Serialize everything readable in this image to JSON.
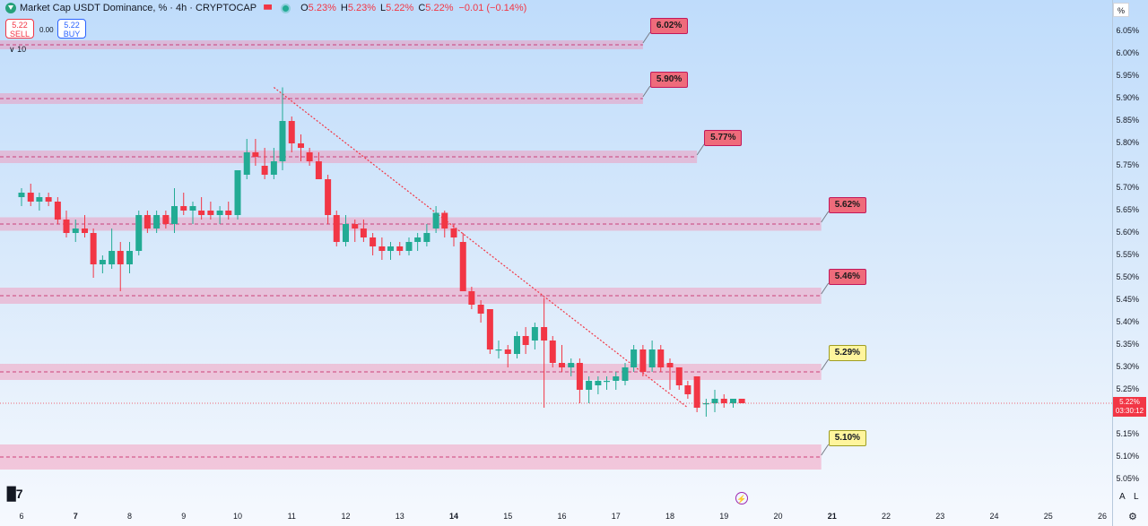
{
  "header": {
    "title": "Market Cap USDT Dominance, %  · 4h · CRYPTOCAP",
    "ohlc": [
      {
        "k": "O",
        "v": "5.23%"
      },
      {
        "k": "H",
        "v": "5.23%"
      },
      {
        "k": "L",
        "v": "5.22%"
      },
      {
        "k": "C",
        "v": "5.22%"
      }
    ],
    "change": "−0.01 (−0.14%)"
  },
  "trade": {
    "sell_price": "5.22",
    "sell_label": "SELL",
    "spread": "0.00",
    "buy_price": "5.22",
    "buy_label": "BUY",
    "indicators_label": "10"
  },
  "price_tag": {
    "price": "5.22%",
    "countdown": "03:30:12"
  },
  "axis_unit": "%",
  "corner": {
    "auto": "A",
    "log": "L"
  },
  "colors": {
    "up": "#22ab94",
    "down": "#f23645",
    "zone": "#f4a7c0",
    "trend": "#f23645"
  },
  "chart_data": {
    "type": "candlestick",
    "y_unit": "%",
    "ylim": [
      5.035,
      6.1
    ],
    "xlim": [
      6.0,
      26.2
    ],
    "y_ticks": [
      "6.05%",
      "6.00%",
      "5.95%",
      "5.90%",
      "5.85%",
      "5.80%",
      "5.75%",
      "5.70%",
      "5.65%",
      "5.60%",
      "5.55%",
      "5.50%",
      "5.45%",
      "5.40%",
      "5.35%",
      "5.30%",
      "5.25%",
      "5.20%",
      "5.15%",
      "5.10%",
      "5.05%"
    ],
    "x_ticks": [
      {
        "label": "6",
        "x": 6,
        "bold": false
      },
      {
        "label": "7",
        "x": 7,
        "bold": true
      },
      {
        "label": "8",
        "x": 8,
        "bold": false
      },
      {
        "label": "9",
        "x": 9,
        "bold": false
      },
      {
        "label": "10",
        "x": 10,
        "bold": false
      },
      {
        "label": "11",
        "x": 11,
        "bold": false
      },
      {
        "label": "12",
        "x": 12,
        "bold": false
      },
      {
        "label": "13",
        "x": 13,
        "bold": false
      },
      {
        "label": "14",
        "x": 14,
        "bold": true
      },
      {
        "label": "15",
        "x": 15,
        "bold": false
      },
      {
        "label": "16",
        "x": 16,
        "bold": false
      },
      {
        "label": "17",
        "x": 17,
        "bold": false
      },
      {
        "label": "18",
        "x": 18,
        "bold": false
      },
      {
        "label": "19",
        "x": 19,
        "bold": false
      },
      {
        "label": "20",
        "x": 20,
        "bold": false
      },
      {
        "label": "21",
        "x": 21,
        "bold": true
      },
      {
        "label": "22",
        "x": 22,
        "bold": false
      },
      {
        "label": "23",
        "x": 23,
        "bold": false
      },
      {
        "label": "24",
        "x": 24,
        "bold": false
      },
      {
        "label": "25",
        "x": 25,
        "bold": false
      },
      {
        "label": "26",
        "x": 26,
        "bold": false
      }
    ],
    "zones": [
      {
        "level": 6.02,
        "label": "6.02%",
        "half": 0.01,
        "x_end": 17.5,
        "style": "red"
      },
      {
        "level": 5.9,
        "label": "5.90%",
        "half": 0.012,
        "x_end": 17.5,
        "style": "red"
      },
      {
        "level": 5.77,
        "label": "5.77%",
        "half": 0.014,
        "x_end": 18.5,
        "style": "red"
      },
      {
        "level": 5.62,
        "label": "5.62%",
        "half": 0.015,
        "x_end": 20.8,
        "style": "red"
      },
      {
        "level": 5.46,
        "label": "5.46%",
        "half": 0.018,
        "x_end": 20.8,
        "style": "red"
      },
      {
        "level": 5.29,
        "label": "5.29%",
        "half": 0.018,
        "x_end": 20.8,
        "style": "yellow"
      },
      {
        "level": 5.1,
        "label": "5.10%",
        "half": 0.028,
        "x_end": 20.8,
        "style": "yellow"
      }
    ],
    "trendline": {
      "from": [
        10.67,
        5.925
      ],
      "to": [
        18.33,
        5.21
      ]
    },
    "last_price": 5.22,
    "candles": [
      {
        "x": 6.0,
        "o": 5.68,
        "h": 5.7,
        "l": 5.66,
        "c": 5.69
      },
      {
        "x": 6.17,
        "o": 5.69,
        "h": 5.71,
        "l": 5.66,
        "c": 5.67
      },
      {
        "x": 6.33,
        "o": 5.67,
        "h": 5.69,
        "l": 5.65,
        "c": 5.68
      },
      {
        "x": 6.5,
        "o": 5.68,
        "h": 5.69,
        "l": 5.66,
        "c": 5.67
      },
      {
        "x": 6.67,
        "o": 5.67,
        "h": 5.68,
        "l": 5.62,
        "c": 5.63
      },
      {
        "x": 6.83,
        "o": 5.63,
        "h": 5.65,
        "l": 5.59,
        "c": 5.6
      },
      {
        "x": 7.0,
        "o": 5.6,
        "h": 5.63,
        "l": 5.58,
        "c": 5.61
      },
      {
        "x": 7.17,
        "o": 5.61,
        "h": 5.64,
        "l": 5.59,
        "c": 5.6
      },
      {
        "x": 7.33,
        "o": 5.6,
        "h": 5.61,
        "l": 5.5,
        "c": 5.53
      },
      {
        "x": 7.5,
        "o": 5.53,
        "h": 5.55,
        "l": 5.51,
        "c": 5.54
      },
      {
        "x": 7.67,
        "o": 5.53,
        "h": 5.61,
        "l": 5.52,
        "c": 5.56
      },
      {
        "x": 7.83,
        "o": 5.56,
        "h": 5.58,
        "l": 5.47,
        "c": 5.53
      },
      {
        "x": 8.0,
        "o": 5.53,
        "h": 5.58,
        "l": 5.51,
        "c": 5.56
      },
      {
        "x": 8.17,
        "o": 5.56,
        "h": 5.65,
        "l": 5.55,
        "c": 5.64
      },
      {
        "x": 8.33,
        "o": 5.64,
        "h": 5.65,
        "l": 5.6,
        "c": 5.61
      },
      {
        "x": 8.5,
        "o": 5.61,
        "h": 5.65,
        "l": 5.6,
        "c": 5.64
      },
      {
        "x": 8.67,
        "o": 5.64,
        "h": 5.65,
        "l": 5.61,
        "c": 5.62
      },
      {
        "x": 8.83,
        "o": 5.62,
        "h": 5.7,
        "l": 5.6,
        "c": 5.66
      },
      {
        "x": 9.0,
        "o": 5.66,
        "h": 5.69,
        "l": 5.64,
        "c": 5.65
      },
      {
        "x": 9.17,
        "o": 5.65,
        "h": 5.67,
        "l": 5.62,
        "c": 5.66
      },
      {
        "x": 9.33,
        "o": 5.65,
        "h": 5.68,
        "l": 5.63,
        "c": 5.64
      },
      {
        "x": 9.5,
        "o": 5.65,
        "h": 5.67,
        "l": 5.63,
        "c": 5.64
      },
      {
        "x": 9.67,
        "o": 5.64,
        "h": 5.66,
        "l": 5.62,
        "c": 5.65
      },
      {
        "x": 9.83,
        "o": 5.65,
        "h": 5.67,
        "l": 5.63,
        "c": 5.64
      },
      {
        "x": 10.0,
        "o": 5.64,
        "h": 5.74,
        "l": 5.63,
        "c": 5.74
      },
      {
        "x": 10.17,
        "o": 5.73,
        "h": 5.81,
        "l": 5.72,
        "c": 5.78
      },
      {
        "x": 10.33,
        "o": 5.78,
        "h": 5.81,
        "l": 5.75,
        "c": 5.77
      },
      {
        "x": 10.5,
        "o": 5.75,
        "h": 5.79,
        "l": 5.72,
        "c": 5.73
      },
      {
        "x": 10.67,
        "o": 5.73,
        "h": 5.79,
        "l": 5.72,
        "c": 5.76
      },
      {
        "x": 10.83,
        "o": 5.76,
        "h": 5.925,
        "l": 5.74,
        "c": 5.85
      },
      {
        "x": 11.0,
        "o": 5.85,
        "h": 5.86,
        "l": 5.78,
        "c": 5.8
      },
      {
        "x": 11.17,
        "o": 5.8,
        "h": 5.82,
        "l": 5.76,
        "c": 5.79
      },
      {
        "x": 11.33,
        "o": 5.78,
        "h": 5.79,
        "l": 5.75,
        "c": 5.76
      },
      {
        "x": 11.5,
        "o": 5.76,
        "h": 5.78,
        "l": 5.72,
        "c": 5.72
      },
      {
        "x": 11.67,
        "o": 5.72,
        "h": 5.73,
        "l": 5.62,
        "c": 5.64
      },
      {
        "x": 11.83,
        "o": 5.64,
        "h": 5.65,
        "l": 5.57,
        "c": 5.58
      },
      {
        "x": 12.0,
        "o": 5.58,
        "h": 5.64,
        "l": 5.57,
        "c": 5.62
      },
      {
        "x": 12.17,
        "o": 5.62,
        "h": 5.63,
        "l": 5.58,
        "c": 5.61
      },
      {
        "x": 12.33,
        "o": 5.61,
        "h": 5.63,
        "l": 5.58,
        "c": 5.59
      },
      {
        "x": 12.5,
        "o": 5.59,
        "h": 5.6,
        "l": 5.55,
        "c": 5.57
      },
      {
        "x": 12.67,
        "o": 5.57,
        "h": 5.59,
        "l": 5.54,
        "c": 5.56
      },
      {
        "x": 12.83,
        "o": 5.56,
        "h": 5.58,
        "l": 5.54,
        "c": 5.57
      },
      {
        "x": 13.0,
        "o": 5.57,
        "h": 5.58,
        "l": 5.55,
        "c": 5.56
      },
      {
        "x": 13.17,
        "o": 5.56,
        "h": 5.59,
        "l": 5.55,
        "c": 5.58
      },
      {
        "x": 13.33,
        "o": 5.58,
        "h": 5.6,
        "l": 5.56,
        "c": 5.59
      },
      {
        "x": 13.5,
        "o": 5.58,
        "h": 5.62,
        "l": 5.57,
        "c": 5.6
      },
      {
        "x": 13.67,
        "o": 5.61,
        "h": 5.66,
        "l": 5.6,
        "c": 5.645
      },
      {
        "x": 13.83,
        "o": 5.645,
        "h": 5.65,
        "l": 5.59,
        "c": 5.61
      },
      {
        "x": 14.0,
        "o": 5.61,
        "h": 5.62,
        "l": 5.57,
        "c": 5.59
      },
      {
        "x": 14.17,
        "o": 5.58,
        "h": 5.6,
        "l": 5.47,
        "c": 5.47
      },
      {
        "x": 14.33,
        "o": 5.47,
        "h": 5.48,
        "l": 5.43,
        "c": 5.44
      },
      {
        "x": 14.5,
        "o": 5.44,
        "h": 5.45,
        "l": 5.4,
        "c": 5.42
      },
      {
        "x": 14.67,
        "o": 5.43,
        "h": 5.43,
        "l": 5.33,
        "c": 5.34
      },
      {
        "x": 14.83,
        "o": 5.34,
        "h": 5.36,
        "l": 5.32,
        "c": 5.34
      },
      {
        "x": 15.0,
        "o": 5.34,
        "h": 5.35,
        "l": 5.3,
        "c": 5.33
      },
      {
        "x": 15.17,
        "o": 5.33,
        "h": 5.38,
        "l": 5.32,
        "c": 5.37
      },
      {
        "x": 15.33,
        "o": 5.37,
        "h": 5.39,
        "l": 5.33,
        "c": 5.35
      },
      {
        "x": 15.5,
        "o": 5.36,
        "h": 5.4,
        "l": 5.34,
        "c": 5.39
      },
      {
        "x": 15.67,
        "o": 5.39,
        "h": 5.455,
        "l": 5.21,
        "c": 5.36
      },
      {
        "x": 15.83,
        "o": 5.36,
        "h": 5.37,
        "l": 5.3,
        "c": 5.31
      },
      {
        "x": 16.0,
        "o": 5.31,
        "h": 5.35,
        "l": 5.29,
        "c": 5.3
      },
      {
        "x": 16.17,
        "o": 5.3,
        "h": 5.32,
        "l": 5.28,
        "c": 5.31
      },
      {
        "x": 16.33,
        "o": 5.31,
        "h": 5.32,
        "l": 5.22,
        "c": 5.25
      },
      {
        "x": 16.5,
        "o": 5.25,
        "h": 5.28,
        "l": 5.22,
        "c": 5.27
      },
      {
        "x": 16.67,
        "o": 5.26,
        "h": 5.28,
        "l": 5.24,
        "c": 5.27
      },
      {
        "x": 16.83,
        "o": 5.27,
        "h": 5.28,
        "l": 5.25,
        "c": 5.27
      },
      {
        "x": 17.0,
        "o": 5.27,
        "h": 5.29,
        "l": 5.25,
        "c": 5.28
      },
      {
        "x": 17.17,
        "o": 5.27,
        "h": 5.31,
        "l": 5.26,
        "c": 5.3
      },
      {
        "x": 17.33,
        "o": 5.3,
        "h": 5.35,
        "l": 5.29,
        "c": 5.34
      },
      {
        "x": 17.5,
        "o": 5.34,
        "h": 5.35,
        "l": 5.28,
        "c": 5.29
      },
      {
        "x": 17.67,
        "o": 5.3,
        "h": 5.36,
        "l": 5.29,
        "c": 5.34
      },
      {
        "x": 17.83,
        "o": 5.34,
        "h": 5.35,
        "l": 5.29,
        "c": 5.3
      },
      {
        "x": 18.0,
        "o": 5.31,
        "h": 5.32,
        "l": 5.25,
        "c": 5.3
      },
      {
        "x": 18.17,
        "o": 5.3,
        "h": 5.3,
        "l": 5.25,
        "c": 5.26
      },
      {
        "x": 18.33,
        "o": 5.26,
        "h": 5.27,
        "l": 5.23,
        "c": 5.24
      },
      {
        "x": 18.5,
        "o": 5.28,
        "h": 5.28,
        "l": 5.2,
        "c": 5.21
      },
      {
        "x": 18.67,
        "o": 5.22,
        "h": 5.23,
        "l": 5.19,
        "c": 5.22
      },
      {
        "x": 18.83,
        "o": 5.22,
        "h": 5.25,
        "l": 5.2,
        "c": 5.23
      },
      {
        "x": 19.0,
        "o": 5.23,
        "h": 5.24,
        "l": 5.21,
        "c": 5.22
      },
      {
        "x": 19.17,
        "o": 5.22,
        "h": 5.23,
        "l": 5.21,
        "c": 5.23
      },
      {
        "x": 19.33,
        "o": 5.23,
        "h": 5.23,
        "l": 5.22,
        "c": 5.22
      }
    ]
  }
}
